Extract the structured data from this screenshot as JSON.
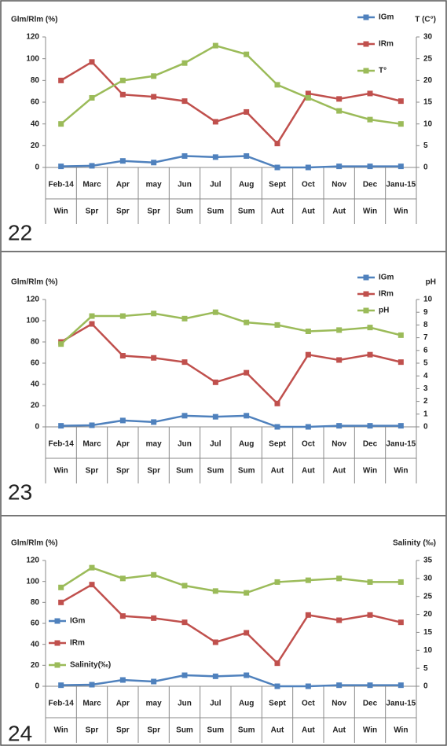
{
  "chart_data": [
    {
      "type": "line",
      "label": "22",
      "ylabel": "Glm/Rlm (%)",
      "y2label": "T (C°)",
      "categories": [
        "Feb-14",
        "Marc",
        "Apr",
        "may",
        "Jun",
        "Jul",
        "Aug",
        "Sept",
        "Oct",
        "Nov",
        "Dec",
        "Janu-15"
      ],
      "categories2": [
        "Win",
        "Spr",
        "Spr",
        "Spr",
        "Sum",
        "Sum",
        "Sum",
        "Aut",
        "Aut",
        "Aut",
        "Win",
        "Win"
      ],
      "ylim": [
        0,
        120
      ],
      "yticks": [
        0,
        20,
        40,
        60,
        80,
        100,
        120
      ],
      "y2lim": [
        0,
        30
      ],
      "y2ticks": [
        0,
        5,
        10,
        15,
        20,
        25,
        30
      ],
      "legend": "upper right",
      "series": [
        {
          "name": "IGm",
          "color": "#4f81bd",
          "values": [
            1,
            1.5,
            6,
            4.5,
            10.5,
            9.5,
            10.5,
            0,
            0,
            1,
            1,
            1
          ]
        },
        {
          "name": "IRm",
          "color": "#c0504d",
          "values": [
            80,
            97,
            67,
            65,
            61,
            42,
            51,
            22,
            68,
            63,
            68,
            61
          ]
        },
        {
          "name": "T°",
          "color": "#9bbb59",
          "axis": "y2",
          "values": [
            10,
            16,
            20,
            21,
            24,
            28,
            26,
            19,
            16,
            13,
            11,
            10
          ]
        }
      ]
    },
    {
      "type": "line",
      "label": "23",
      "ylabel": "Glm/Rlm (%)",
      "y2label": "pH",
      "categories": [
        "Feb-14",
        "Marc",
        "Apr",
        "may",
        "Jun",
        "Jul",
        "Aug",
        "Sept",
        "Oct",
        "Nov",
        "Dec",
        "Janu-15"
      ],
      "categories2": [
        "Win",
        "Spr",
        "Spr",
        "Spr",
        "Sum",
        "Sum",
        "Sum",
        "Aut",
        "Aut",
        "Aut",
        "Win",
        "Win"
      ],
      "ylim": [
        0,
        120
      ],
      "yticks": [
        0,
        20,
        40,
        60,
        80,
        100,
        120
      ],
      "y2lim": [
        0,
        10
      ],
      "y2ticks": [
        0,
        1,
        2,
        3,
        4,
        5,
        6,
        7,
        8,
        9,
        10
      ],
      "legend": "upper right",
      "series": [
        {
          "name": "IGm",
          "color": "#4f81bd",
          "values": [
            1,
            1.5,
            6,
            4.5,
            10.5,
            9.5,
            10.5,
            0,
            0,
            1,
            1,
            1
          ]
        },
        {
          "name": "IRm",
          "color": "#c0504d",
          "values": [
            80,
            97,
            67,
            65,
            61,
            42,
            51,
            22,
            68,
            63,
            68,
            61
          ]
        },
        {
          "name": "pH",
          "color": "#9bbb59",
          "axis": "y2",
          "values": [
            6.5,
            8.7,
            8.7,
            8.9,
            8.5,
            9,
            8.2,
            8,
            7.5,
            7.6,
            7.8,
            7.2
          ]
        }
      ]
    },
    {
      "type": "line",
      "label": "24",
      "ylabel": "Glm/Rlm (%)",
      "y2label": "Salinity (‰)",
      "categories": [
        "Feb-14",
        "Marc",
        "Apr",
        "may",
        "Jun",
        "Jul",
        "Aug",
        "Sept",
        "Oct",
        "Nov",
        "Dec",
        "Janu-15"
      ],
      "categories2": [
        "Win",
        "Spr",
        "Spr",
        "Spr",
        "Sum",
        "Sum",
        "Sum",
        "Aut",
        "Aut",
        "Aut",
        "Win",
        "Win"
      ],
      "ylim": [
        0,
        120
      ],
      "yticks": [
        0,
        20,
        40,
        60,
        80,
        100,
        120
      ],
      "y2lim": [
        0,
        35
      ],
      "y2ticks": [
        0,
        5,
        10,
        15,
        20,
        25,
        30,
        35
      ],
      "legend": "center left",
      "series": [
        {
          "name": "IGm",
          "color": "#4f81bd",
          "values": [
            1,
            1.5,
            6,
            4.5,
            10.5,
            9.5,
            10.5,
            0,
            0,
            1,
            1,
            1
          ]
        },
        {
          "name": "IRm",
          "color": "#c0504d",
          "values": [
            80,
            97,
            67,
            65,
            61,
            42,
            51,
            22,
            68,
            63,
            68,
            61
          ]
        },
        {
          "name": "Salinity(‰)",
          "color": "#9bbb59",
          "axis": "y2",
          "values": [
            27.5,
            33,
            30,
            31,
            28,
            26.5,
            26,
            29,
            29.5,
            30,
            29,
            29
          ]
        }
      ]
    }
  ]
}
